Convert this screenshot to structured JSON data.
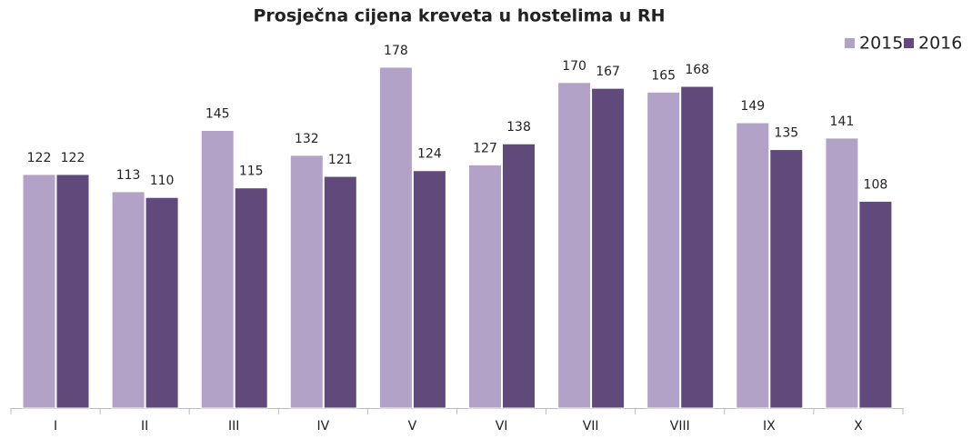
{
  "chart_data": {
    "type": "bar",
    "title": "Prosječna cijena kreveta u hostelima u RH",
    "categories": [
      "I",
      "II",
      "III",
      "IV",
      "V",
      "VI",
      "VII",
      "VIII",
      "IX",
      "X"
    ],
    "series": [
      {
        "name": "2015",
        "color": "#b3a2c8",
        "values": [
          122,
          113,
          145,
          132,
          178,
          127,
          170,
          165,
          149,
          141
        ]
      },
      {
        "name": "2016",
        "color": "#5f4a7b",
        "values": [
          122,
          110,
          115,
          121,
          124,
          138,
          167,
          168,
          135,
          108
        ]
      }
    ],
    "legend": "top-right"
  }
}
